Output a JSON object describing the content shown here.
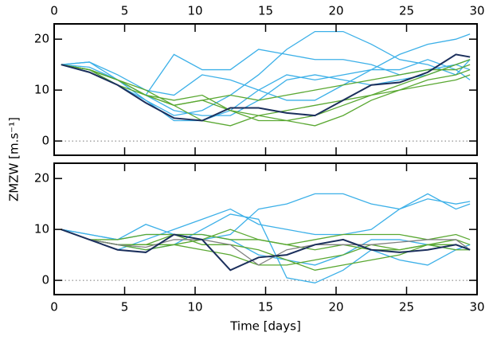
{
  "chart_data": [
    {
      "type": "line",
      "ylabel": "ZMZW [m.s⁻¹]",
      "xaxis": "top",
      "zero_line": true,
      "xlim": [
        0,
        30
      ],
      "xticks": [
        0,
        5,
        10,
        15,
        20,
        25,
        30
      ],
      "ylim": [
        -2.8,
        23
      ],
      "yticks": [
        0,
        10,
        20
      ],
      "x": [
        0.5,
        2.5,
        4.5,
        6.5,
        8.5,
        10.5,
        12.5,
        14.5,
        16.5,
        18.5,
        20.5,
        22.5,
        24.5,
        26.5,
        28.5,
        29.5
      ],
      "series": [
        {
          "color": "#3cb0e8",
          "values": [
            15,
            15.5,
            12,
            8,
            5,
            6,
            9,
            13,
            18,
            21.5,
            21.5,
            19,
            16,
            15,
            13,
            16
          ]
        },
        {
          "color": "#3cb0e8",
          "values": [
            15,
            15.5,
            13,
            10,
            9,
            13,
            12,
            10,
            8,
            8,
            11,
            14,
            17,
            19,
            20,
            21
          ]
        },
        {
          "color": "#3cb0e8",
          "values": [
            15,
            14.5,
            12,
            9,
            17,
            14,
            14,
            18,
            17,
            16,
            16,
            15,
            13,
            14,
            15,
            16
          ]
        },
        {
          "color": "#3cb0e8",
          "values": [
            15,
            14,
            11,
            8,
            4,
            4,
            6,
            10,
            13,
            12,
            13,
            14,
            14,
            16,
            14,
            12
          ]
        },
        {
          "color": "#3cb0e8",
          "values": [
            15,
            14,
            12,
            9,
            6,
            5,
            5,
            8,
            12,
            13,
            12,
            11,
            12,
            13,
            15,
            14
          ]
        },
        {
          "color": "#5aa832",
          "values": [
            15,
            14,
            12,
            9,
            7,
            8,
            6,
            5,
            4,
            5,
            7,
            9,
            11,
            13,
            15,
            16
          ]
        },
        {
          "color": "#5aa832",
          "values": [
            15,
            14,
            12,
            10,
            7,
            8,
            9,
            8,
            9,
            10,
            11,
            12,
            13,
            14,
            14,
            15
          ]
        },
        {
          "color": "#5aa832",
          "values": [
            15,
            14,
            12,
            9,
            8,
            9,
            6,
            4,
            4,
            3,
            5,
            8,
            10,
            12,
            13,
            14
          ]
        },
        {
          "color": "#5aa832",
          "values": [
            15,
            14,
            11,
            9,
            7,
            4,
            3,
            5,
            6,
            7,
            8,
            9,
            10,
            11,
            12,
            13
          ]
        },
        {
          "color": "#1b2f5c",
          "values": [
            15,
            13.5,
            11,
            7.5,
            4.5,
            4,
            6.5,
            6.5,
            5.5,
            5,
            8,
            11,
            11.5,
            13.5,
            17,
            16.5
          ]
        }
      ]
    },
    {
      "type": "line",
      "xlabel": "Time [days]",
      "xaxis": "bottom",
      "zero_line": true,
      "xlim": [
        0,
        30
      ],
      "xticks": [
        0,
        5,
        10,
        15,
        20,
        25,
        30
      ],
      "ylim": [
        -2.8,
        23
      ],
      "yticks": [
        0,
        10,
        20
      ],
      "x": [
        0.5,
        2.5,
        4.5,
        6.5,
        8.5,
        10.5,
        12.5,
        14.5,
        16.5,
        18.5,
        20.5,
        22.5,
        24.5,
        26.5,
        28.5,
        29.5
      ],
      "series": [
        {
          "color": "#3cb0e8",
          "values": [
            10,
            9,
            8,
            11,
            9,
            8,
            9,
            14,
            15,
            17,
            17,
            15,
            14,
            16,
            15,
            15.5
          ]
        },
        {
          "color": "#3cb0e8",
          "values": [
            10,
            8,
            6,
            8,
            10,
            12,
            14,
            11,
            10,
            9,
            9,
            10,
            14,
            17,
            14,
            15
          ]
        },
        {
          "color": "#3cb0e8",
          "values": [
            10,
            8,
            7,
            6,
            7,
            10,
            13,
            12,
            0.5,
            -0.5,
            2,
            6,
            4,
            3,
            6,
            7
          ]
        },
        {
          "color": "#3cb0e8",
          "values": [
            10,
            9,
            8,
            9,
            9,
            9,
            8,
            5,
            4,
            3,
            5,
            8,
            8,
            7,
            6,
            7
          ]
        },
        {
          "color": "#5aa832",
          "values": [
            10,
            8,
            7,
            7,
            9,
            9,
            8,
            8,
            7,
            8,
            9,
            9,
            9,
            8,
            9,
            8
          ]
        },
        {
          "color": "#5aa832",
          "values": [
            10,
            8,
            8,
            9,
            9,
            7,
            7,
            6,
            4,
            2,
            3,
            4,
            5,
            7,
            8,
            7
          ]
        },
        {
          "color": "#5aa832",
          "values": [
            10,
            8,
            7,
            7,
            7,
            6,
            5,
            3,
            3,
            4,
            5,
            7,
            6,
            7,
            6,
            6
          ]
        },
        {
          "color": "#5aa832",
          "values": [
            10,
            8,
            7,
            6,
            7,
            8,
            10,
            8,
            7,
            6,
            7,
            6,
            6,
            7,
            7,
            6
          ]
        },
        {
          "color": "#808080",
          "values": [
            10,
            8,
            7,
            6.5,
            8,
            8,
            7,
            3,
            6,
            7,
            7,
            7,
            7.5,
            8,
            8,
            6
          ]
        },
        {
          "color": "#1b2f5c",
          "values": [
            10,
            8,
            6,
            5.5,
            9,
            8,
            2,
            4.5,
            5,
            7,
            8,
            6,
            5.5,
            6,
            7,
            6
          ]
        }
      ]
    }
  ]
}
